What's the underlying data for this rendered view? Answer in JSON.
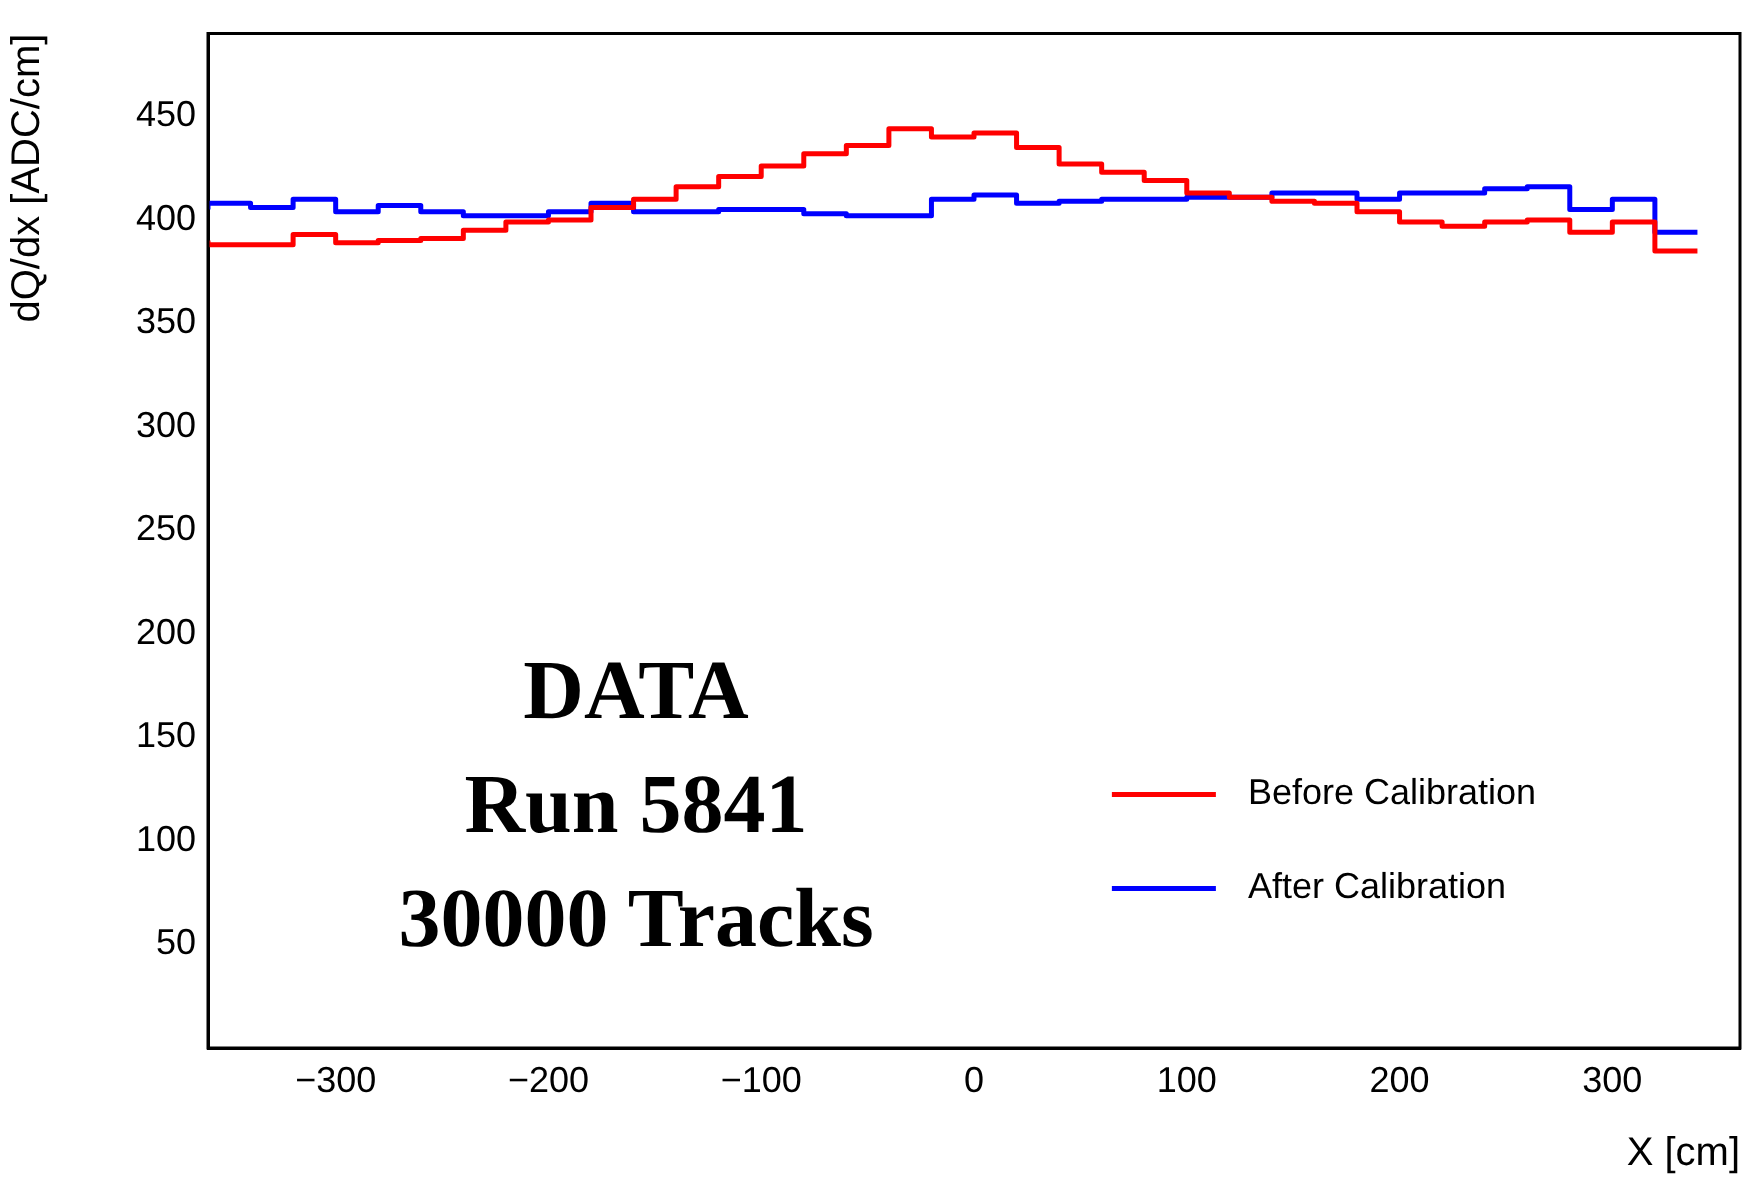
{
  "chart_data": {
    "type": "step",
    "xlabel": "X [cm]",
    "ylabel": "dQ/dx [ADC/cm]",
    "annotations": [
      "DATA",
      "Run 5841",
      "30000 Tracks"
    ],
    "xlim": [
      -360,
      360
    ],
    "xticks": [
      -300,
      -200,
      -100,
      0,
      100,
      200,
      300
    ],
    "ylim": [
      0,
      490
    ],
    "yticks": [
      50,
      100,
      150,
      200,
      250,
      300,
      350,
      400,
      450
    ],
    "grid": false,
    "legend": "bottom right",
    "marker": "none",
    "line_style": "solid",
    "x": [
      -360,
      -340,
      -320,
      -300,
      -280,
      -260,
      -240,
      -220,
      -200,
      -180,
      -160,
      -140,
      -120,
      -100,
      -80,
      -60,
      -40,
      -20,
      0,
      20,
      40,
      60,
      80,
      100,
      120,
      140,
      160,
      180,
      200,
      220,
      240,
      260,
      280,
      300,
      320,
      340
    ],
    "series": [
      {
        "name": "Before Calibration",
        "color": "#ff0000",
        "values": [
          390,
          388,
          388,
          393,
          389,
          390,
          391,
          395,
          399,
          400,
          406,
          410,
          416,
          421,
          426,
          432,
          436,
          444,
          440,
          442,
          435,
          427,
          423,
          419,
          413,
          411,
          409,
          408,
          404,
          399,
          397,
          399,
          400,
          394,
          399,
          385
        ]
      },
      {
        "name": "After Calibration",
        "color": "#0000ff",
        "values": [
          405,
          408,
          406,
          410,
          404,
          407,
          404,
          402,
          402,
          404,
          408,
          404,
          404,
          405,
          405,
          403,
          402,
          402,
          410,
          412,
          408,
          409,
          410,
          410,
          411,
          411,
          413,
          413,
          410,
          413,
          413,
          415,
          416,
          405,
          410,
          394
        ]
      }
    ]
  }
}
